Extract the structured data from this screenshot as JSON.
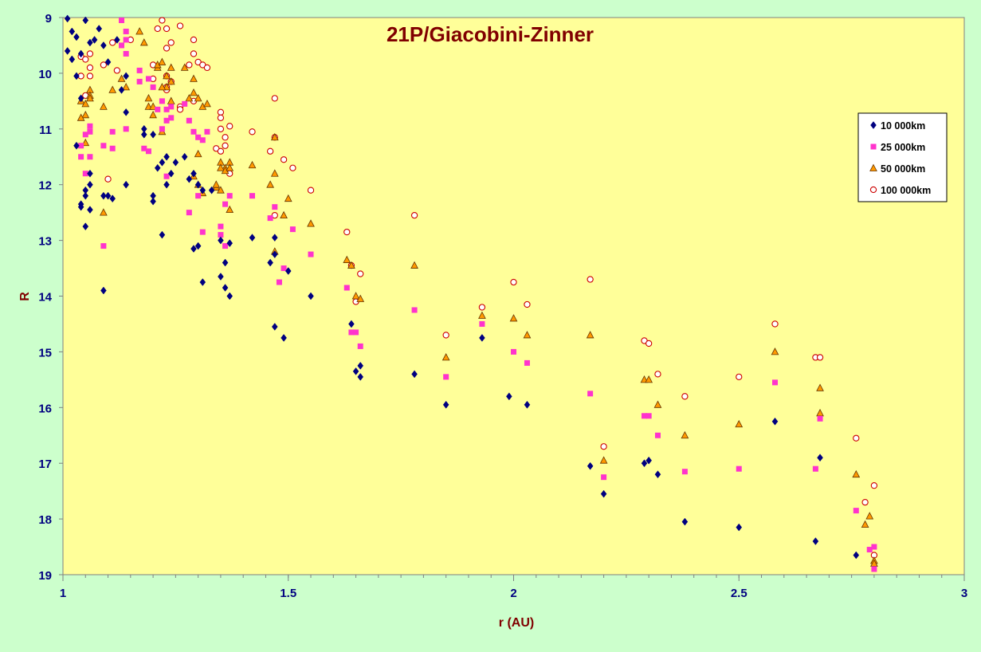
{
  "chart_data": {
    "type": "scatter",
    "title": "21P/Giacobini-Zinner",
    "xlabel": "r (AU)",
    "ylabel": "R",
    "xlim": [
      1,
      3
    ],
    "ylim": [
      9,
      19
    ],
    "y_inverted": true,
    "x_ticks": [
      1,
      1.5,
      2,
      2.5,
      3
    ],
    "x_tick_labels": [
      "1",
      "1.5",
      "2",
      "2.5",
      "3"
    ],
    "y_ticks": [
      9,
      10,
      11,
      12,
      13,
      14,
      15,
      16,
      17,
      18,
      19
    ],
    "y_tick_labels": [
      "9",
      "10",
      "11",
      "12",
      "13",
      "14",
      "15",
      "16",
      "17",
      "18",
      "19"
    ],
    "grid": false,
    "legend_position": "top-right",
    "colors": {
      "figure_bg": "#ccffcc",
      "plot_bg": "#ffff99",
      "title": "#800000",
      "axis_label": "#800000",
      "tick_label": "#000080"
    },
    "series": [
      {
        "name": "10 000km",
        "marker": "diamond",
        "color": "#000080",
        "x": [
          1.01,
          1.02,
          1.01,
          1.02,
          1.03,
          1.04,
          1.05,
          1.03,
          1.04,
          1.06,
          1.07,
          1.08,
          1.09,
          1.1,
          1.12,
          1.13,
          1.14,
          1.14,
          1.03,
          1.04,
          1.05,
          1.06,
          1.06,
          1.05,
          1.04,
          1.05,
          1.06,
          1.09,
          1.1,
          1.11,
          1.14,
          1.09,
          1.18,
          1.18,
          1.2,
          1.2,
          1.2,
          1.21,
          1.22,
          1.23,
          1.23,
          1.24,
          1.25,
          1.27,
          1.28,
          1.29,
          1.3,
          1.31,
          1.33,
          1.29,
          1.3,
          1.31,
          1.22,
          1.35,
          1.36,
          1.37,
          1.35,
          1.36,
          1.37,
          1.42,
          1.46,
          1.47,
          1.47,
          1.5,
          1.47,
          1.49,
          1.55,
          1.64,
          1.65,
          1.66,
          1.66,
          1.78,
          1.85,
          1.93,
          1.99,
          2.03,
          2.17,
          2.2,
          2.29,
          2.3,
          2.32,
          2.38,
          2.5,
          2.58,
          2.67,
          2.68,
          2.76
        ],
        "y": [
          9.02,
          9.25,
          9.6,
          9.75,
          9.35,
          9.65,
          9.05,
          10.05,
          10.45,
          9.45,
          9.4,
          9.2,
          9.5,
          9.8,
          9.4,
          10.3,
          10.05,
          10.7,
          11.3,
          12.4,
          12.75,
          11.8,
          12.0,
          12.2,
          12.35,
          12.1,
          12.45,
          12.2,
          12.2,
          12.25,
          12.0,
          13.9,
          11.0,
          11.1,
          11.1,
          12.2,
          12.3,
          11.7,
          11.6,
          11.5,
          12.0,
          11.8,
          11.6,
          11.5,
          11.9,
          11.8,
          12.0,
          12.1,
          12.1,
          13.15,
          13.1,
          13.75,
          12.9,
          13.65,
          13.85,
          13.05,
          13.0,
          13.4,
          14.0,
          12.95,
          13.4,
          12.95,
          13.25,
          13.55,
          14.55,
          14.75,
          14.0,
          14.5,
          15.35,
          15.45,
          15.25,
          15.4,
          15.95,
          14.75,
          15.8,
          15.95,
          17.05,
          17.55,
          17.0,
          16.95,
          17.2,
          18.05,
          18.15,
          16.25,
          18.4,
          16.9,
          18.65
        ]
      },
      {
        "name": "25 000km",
        "marker": "square",
        "color": "#ff33cc",
        "x": [
          1.13,
          1.14,
          1.14,
          1.13,
          1.14,
          1.17,
          1.17,
          1.19,
          1.2,
          1.21,
          1.22,
          1.22,
          1.23,
          1.23,
          1.24,
          1.24,
          1.27,
          1.28,
          1.29,
          1.3,
          1.31,
          1.32,
          1.28,
          1.3,
          1.31,
          1.06,
          1.06,
          1.05,
          1.04,
          1.04,
          1.05,
          1.06,
          1.09,
          1.11,
          1.11,
          1.14,
          1.18,
          1.19,
          1.23,
          1.09,
          1.35,
          1.36,
          1.37,
          1.35,
          1.36,
          1.42,
          1.46,
          1.47,
          1.48,
          1.49,
          1.51,
          1.55,
          1.63,
          1.64,
          1.65,
          1.66,
          1.78,
          1.85,
          1.93,
          2.0,
          2.03,
          2.17,
          2.2,
          2.29,
          2.3,
          2.32,
          2.38,
          2.5,
          2.58,
          2.67,
          2.68,
          2.76,
          2.79,
          2.8,
          2.8
        ],
        "y": [
          9.05,
          9.25,
          9.4,
          9.5,
          9.65,
          9.95,
          10.15,
          10.1,
          10.25,
          10.65,
          10.5,
          11.0,
          10.85,
          10.65,
          10.8,
          10.6,
          10.55,
          10.85,
          11.05,
          11.15,
          11.2,
          11.05,
          12.5,
          12.2,
          12.85,
          10.95,
          11.05,
          11.1,
          11.3,
          11.5,
          11.8,
          11.5,
          11.3,
          11.05,
          11.35,
          11.0,
          11.35,
          11.4,
          11.85,
          13.1,
          12.75,
          12.35,
          12.2,
          12.9,
          13.1,
          12.2,
          12.6,
          12.4,
          13.75,
          13.5,
          12.8,
          13.25,
          13.85,
          14.65,
          14.65,
          14.9,
          14.25,
          15.45,
          14.5,
          15.0,
          15.2,
          15.75,
          17.25,
          16.15,
          16.15,
          16.5,
          17.15,
          17.1,
          15.55,
          17.1,
          16.2,
          17.85,
          18.55,
          18.5,
          18.9
        ]
      },
      {
        "name": "50 000km",
        "marker": "triangle",
        "color": "#ff9900",
        "x": [
          1.04,
          1.05,
          1.06,
          1.05,
          1.06,
          1.04,
          1.05,
          1.06,
          1.09,
          1.11,
          1.13,
          1.09,
          1.14,
          1.17,
          1.18,
          1.19,
          1.2,
          1.21,
          1.21,
          1.22,
          1.23,
          1.23,
          1.24,
          1.24,
          1.22,
          1.22,
          1.19,
          1.2,
          1.24,
          1.27,
          1.28,
          1.29,
          1.29,
          1.3,
          1.31,
          1.32,
          1.3,
          1.29,
          1.3,
          1.31,
          1.34,
          1.35,
          1.35,
          1.36,
          1.37,
          1.37,
          1.34,
          1.35,
          1.36,
          1.37,
          1.42,
          1.46,
          1.47,
          1.47,
          1.47,
          1.49,
          1.5,
          1.55,
          1.63,
          1.64,
          1.65,
          1.66,
          1.78,
          1.85,
          1.93,
          2.0,
          2.03,
          2.17,
          2.2,
          2.29,
          2.3,
          2.32,
          2.38,
          2.5,
          2.58,
          2.68,
          2.68,
          2.76,
          2.78,
          2.79,
          2.8,
          2.8
        ],
        "y": [
          10.5,
          10.55,
          10.3,
          10.75,
          10.4,
          10.8,
          11.25,
          10.45,
          10.6,
          10.3,
          10.1,
          12.5,
          10.25,
          9.25,
          9.45,
          10.6,
          10.75,
          9.9,
          9.85,
          9.8,
          10.05,
          10.25,
          10.15,
          9.9,
          11.05,
          10.25,
          10.45,
          10.6,
          10.5,
          9.9,
          10.45,
          10.1,
          10.35,
          10.45,
          10.6,
          10.55,
          11.45,
          11.85,
          12.0,
          12.15,
          12.05,
          11.6,
          12.1,
          11.7,
          11.6,
          12.45,
          12.0,
          11.7,
          11.75,
          11.7,
          11.65,
          12.0,
          11.8,
          11.15,
          13.2,
          12.55,
          12.25,
          12.7,
          13.35,
          13.45,
          14.0,
          14.05,
          13.45,
          15.1,
          14.35,
          14.4,
          14.7,
          14.7,
          16.95,
          15.5,
          15.5,
          15.95,
          16.5,
          16.3,
          15.0,
          15.65,
          16.1,
          17.2,
          18.1,
          17.95,
          18.75,
          18.8
        ]
      },
      {
        "name": "100 000km",
        "marker": "circle",
        "color": "#cc0000",
        "x": [
          1.04,
          1.05,
          1.04,
          1.05,
          1.06,
          1.06,
          1.06,
          1.09,
          1.1,
          1.11,
          1.12,
          1.15,
          1.2,
          1.21,
          1.22,
          1.23,
          1.23,
          1.24,
          1.23,
          1.26,
          1.28,
          1.29,
          1.29,
          1.3,
          1.31,
          1.32,
          1.2,
          1.23,
          1.24,
          1.26,
          1.29,
          1.23,
          1.26,
          1.35,
          1.35,
          1.36,
          1.37,
          1.34,
          1.35,
          1.35,
          1.36,
          1.37,
          1.42,
          1.46,
          1.47,
          1.47,
          1.47,
          1.49,
          1.51,
          1.55,
          1.63,
          1.64,
          1.65,
          1.66,
          1.78,
          1.85,
          1.93,
          2.0,
          2.03,
          2.17,
          2.2,
          2.29,
          2.3,
          2.32,
          2.38,
          2.5,
          2.58,
          2.67,
          2.68,
          2.76,
          2.78,
          2.8,
          2.8
        ],
        "y": [
          9.7,
          9.75,
          10.05,
          10.4,
          9.65,
          9.9,
          10.05,
          9.85,
          11.9,
          9.45,
          9.95,
          9.4,
          9.85,
          9.2,
          9.05,
          9.2,
          9.55,
          9.45,
          10.25,
          9.15,
          9.85,
          9.4,
          9.65,
          9.8,
          9.85,
          9.9,
          10.1,
          10.05,
          10.15,
          10.6,
          10.5,
          10.3,
          10.65,
          10.7,
          10.8,
          11.15,
          10.95,
          11.35,
          11.4,
          11.0,
          11.3,
          11.8,
          11.05,
          11.4,
          11.15,
          10.45,
          12.55,
          11.55,
          11.7,
          12.1,
          12.85,
          13.45,
          14.1,
          13.6,
          12.55,
          14.7,
          14.2,
          13.75,
          14.15,
          13.7,
          16.7,
          14.8,
          14.85,
          15.4,
          15.8,
          15.45,
          14.5,
          15.1,
          15.1,
          16.55,
          17.7,
          17.4,
          18.65
        ]
      }
    ]
  }
}
